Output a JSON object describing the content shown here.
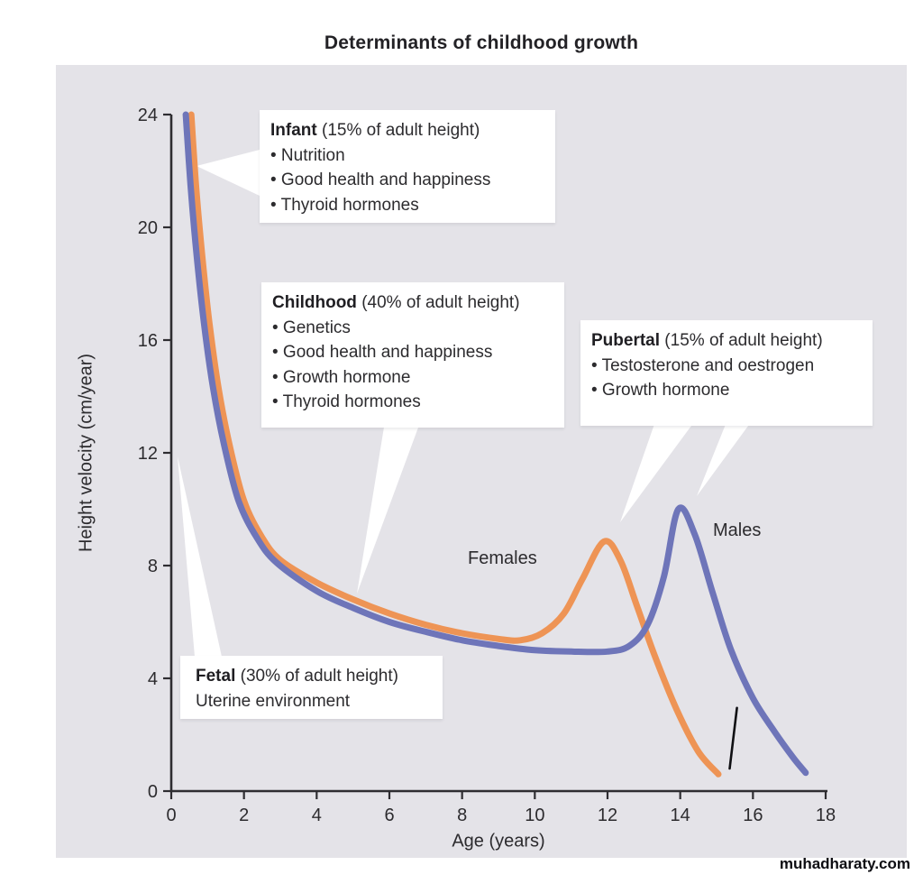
{
  "title": "Determinants of childhood growth",
  "watermark": "muhadharaty.com",
  "chart_data": {
    "type": "line",
    "title": "Determinants of childhood growth",
    "xlabel": "Age (years)",
    "ylabel": "Height velocity (cm/year)",
    "xlim": [
      0,
      18
    ],
    "ylim": [
      0,
      24
    ],
    "x_ticks": [
      0,
      2,
      4,
      6,
      8,
      10,
      12,
      14,
      16,
      18
    ],
    "y_ticks": [
      0,
      4,
      8,
      12,
      16,
      20,
      24
    ],
    "grid": false,
    "legend_position": "inline-labels",
    "series": [
      {
        "name": "Females",
        "color": "#ee9455",
        "points": [
          [
            0.55,
            24
          ],
          [
            0.68,
            21.5
          ],
          [
            0.85,
            19
          ],
          [
            1.05,
            16.6
          ],
          [
            1.3,
            14.3
          ],
          [
            1.6,
            12.3
          ],
          [
            2.0,
            10.3
          ],
          [
            2.5,
            9.0
          ],
          [
            3.0,
            8.2
          ],
          [
            4.0,
            7.4
          ],
          [
            5.0,
            6.8
          ],
          [
            6.0,
            6.3
          ],
          [
            7.0,
            5.9
          ],
          [
            8.0,
            5.6
          ],
          [
            9.0,
            5.4
          ],
          [
            9.6,
            5.35
          ],
          [
            10.2,
            5.6
          ],
          [
            10.8,
            6.3
          ],
          [
            11.3,
            7.5
          ],
          [
            11.9,
            8.85
          ],
          [
            12.35,
            8.2
          ],
          [
            12.8,
            6.6
          ],
          [
            13.3,
            4.8
          ],
          [
            13.9,
            2.9
          ],
          [
            14.5,
            1.4
          ],
          [
            15.05,
            0.6
          ]
        ],
        "peak": {
          "age": 12,
          "value": 8.8
        }
      },
      {
        "name": "Males",
        "color": "#6e75b9",
        "points": [
          [
            0.4,
            24
          ],
          [
            0.53,
            21.5
          ],
          [
            0.7,
            19
          ],
          [
            0.9,
            16.6
          ],
          [
            1.15,
            14.3
          ],
          [
            1.45,
            12.3
          ],
          [
            1.85,
            10.3
          ],
          [
            2.35,
            9.0
          ],
          [
            2.9,
            8.1
          ],
          [
            4.0,
            7.1
          ],
          [
            5.0,
            6.5
          ],
          [
            6.0,
            6.0
          ],
          [
            7.0,
            5.65
          ],
          [
            8.0,
            5.35
          ],
          [
            9.0,
            5.15
          ],
          [
            10.0,
            5.0
          ],
          [
            11.0,
            4.95
          ],
          [
            12.0,
            4.95
          ],
          [
            12.6,
            5.15
          ],
          [
            13.1,
            5.9
          ],
          [
            13.55,
            7.6
          ],
          [
            13.95,
            10.0
          ],
          [
            14.4,
            9.1
          ],
          [
            14.9,
            7.0
          ],
          [
            15.4,
            5.0
          ],
          [
            16.0,
            3.3
          ],
          [
            16.6,
            2.1
          ],
          [
            17.1,
            1.2
          ],
          [
            17.45,
            0.65
          ]
        ],
        "peak": {
          "age": 14,
          "value": 10.0
        }
      }
    ],
    "annotation_mark": {
      "x1": 15.56,
      "y1": 2.95,
      "x2": 15.36,
      "y2": 0.8,
      "color": "#101014"
    }
  },
  "annotations": {
    "infant": {
      "title": "Infant",
      "subtitle": " (15% of adult height)",
      "bullets": [
        "Nutrition",
        "Good health and happiness",
        "Thyroid hormones"
      ]
    },
    "childhood": {
      "title": "Childhood",
      "subtitle": " (40% of adult height)",
      "bullets": [
        "Genetics",
        "Good health and  happiness",
        "Growth hormone",
        "Thyroid hormones"
      ]
    },
    "pubertal": {
      "title": "Pubertal",
      "subtitle": " (15% of adult height)",
      "bullets": [
        "Testosterone and oestrogen",
        "Growth hormone"
      ]
    },
    "fetal": {
      "title": "Fetal",
      "subtitle": " (30% of adult height)",
      "bullets": [],
      "body": "Uterine environment"
    }
  },
  "colors": {
    "panel_background": "#e4e3e8",
    "axis": "#2e2d31",
    "text": "#2c2b2e",
    "females_curve": "#ee9455",
    "males_curve": "#6e75b9",
    "annotation_box": "#ffffff"
  }
}
